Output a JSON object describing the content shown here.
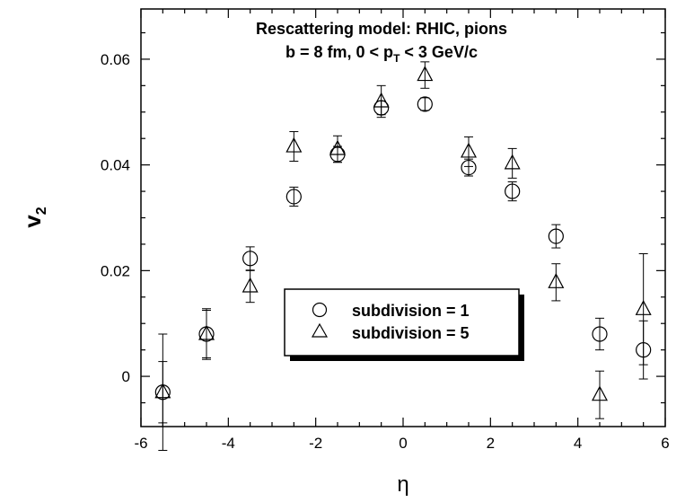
{
  "chart_data": {
    "type": "scatter",
    "title_line1": "Rescattering model: RHIC, pions",
    "title_line2_prefix": "b = 8 fm, 0 < p",
    "title_line2_sub": "T",
    "title_line2_suffix": " < 3 GeV/c",
    "xlabel": "η",
    "ylabel_main": "v",
    "ylabel_sub": "2",
    "xlim": [
      -6,
      6
    ],
    "ylim": [
      -0.0095,
      0.0695
    ],
    "xticks": [
      -6,
      -4,
      -2,
      0,
      2,
      4,
      6
    ],
    "xtick_labels": [
      "-6",
      "-4",
      "-2",
      "0",
      "2",
      "4",
      "6"
    ],
    "yticks": [
      0,
      0.02,
      0.04,
      0.06
    ],
    "ytick_labels": [
      "0",
      "0.02",
      "0.04",
      "0.06"
    ],
    "grid": false,
    "legend_position": "center",
    "series": [
      {
        "name": "subdivision = 1",
        "marker": "circle",
        "x": [
          -5.5,
          -4.5,
          -3.5,
          -2.5,
          -1.5,
          -0.5,
          0.5,
          1.5,
          2.5,
          3.5,
          4.5,
          5.5
        ],
        "y": [
          -0.003,
          0.008,
          0.0223,
          0.034,
          0.042,
          0.0508,
          0.0515,
          0.0395,
          0.035,
          0.0265,
          0.008,
          0.005
        ],
        "err": [
          0.011,
          0.0045,
          0.0022,
          0.0018,
          0.0015,
          0.0013,
          0.0012,
          0.0016,
          0.0018,
          0.0022,
          0.003,
          0.0055
        ]
      },
      {
        "name": "subdivision = 5",
        "marker": "triangle",
        "x": [
          -5.5,
          -4.5,
          -3.5,
          -2.5,
          -1.5,
          -0.5,
          0.5,
          1.5,
          2.5,
          3.5,
          4.5,
          5.5
        ],
        "y": [
          -0.003,
          0.008,
          0.017,
          0.0435,
          0.043,
          0.052,
          0.057,
          0.0425,
          0.0403,
          0.0178,
          -0.0035,
          0.0127
        ],
        "err": [
          0.0058,
          0.0048,
          0.003,
          0.0028,
          0.0025,
          0.003,
          0.0025,
          0.0028,
          0.0028,
          0.0035,
          0.0045,
          0.0105
        ]
      }
    ]
  }
}
